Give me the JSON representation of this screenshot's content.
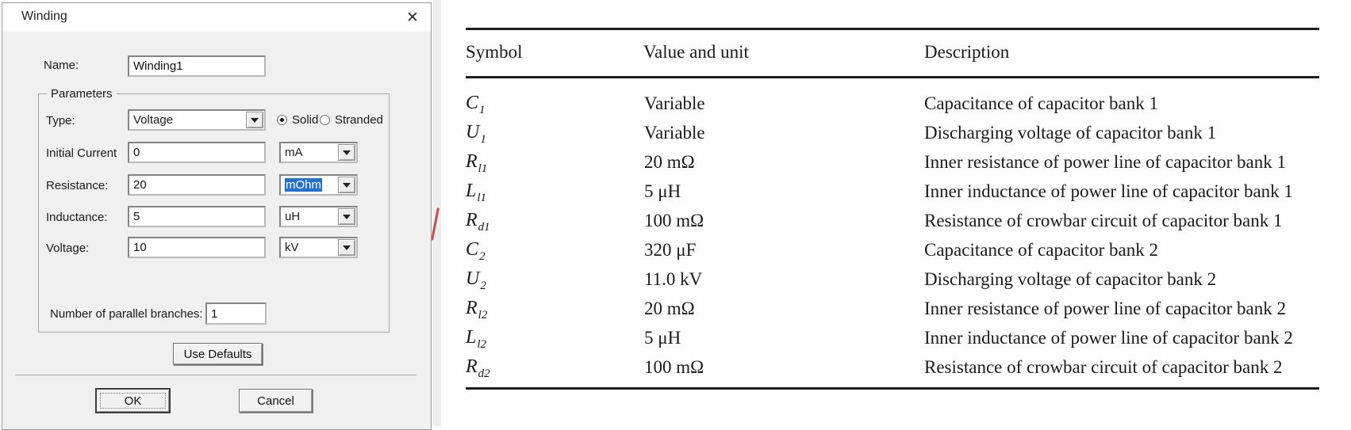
{
  "dialog": {
    "title": "Winding",
    "close_icon": "✕",
    "name": {
      "label": "Name:",
      "value": "Winding1"
    },
    "group_label": "Parameters",
    "type": {
      "label": "Type:",
      "value": "Voltage"
    },
    "conductor": {
      "solid_label": "Solid",
      "stranded_label": "Stranded",
      "selected": "Solid"
    },
    "initial_current": {
      "label": "Initial Current",
      "value": "0",
      "unit": "mA"
    },
    "resistance": {
      "label": "Resistance:",
      "value": "20",
      "unit": "mOhm",
      "unit_selected": true
    },
    "inductance": {
      "label": "Inductance:",
      "value": "5",
      "unit": "uH"
    },
    "voltage": {
      "label": "Voltage:",
      "value": "10",
      "unit": "kV"
    },
    "branches": {
      "label": "Number of parallel branches:",
      "value": "1"
    },
    "buttons": {
      "use_defaults": "Use Defaults",
      "ok": "OK",
      "cancel": "Cancel"
    }
  },
  "table": {
    "headers": [
      "Symbol",
      "Value and unit",
      "Description"
    ],
    "rows": [
      {
        "symbol_base": "C",
        "symbol_sub": "1",
        "value": "Variable",
        "description": "Capacitance of capacitor bank 1"
      },
      {
        "symbol_base": "U",
        "symbol_sub": "1",
        "value": "Variable",
        "description": "Discharging voltage of capacitor bank 1"
      },
      {
        "symbol_base": "R",
        "symbol_sub": "l1",
        "value": "20 mΩ",
        "description": "Inner resistance of power line of capacitor bank 1"
      },
      {
        "symbol_base": "L",
        "symbol_sub": "l1",
        "value": "5 μH",
        "description": "Inner inductance of power line of capacitor bank 1"
      },
      {
        "symbol_base": "R",
        "symbol_sub": "d1",
        "value": "100 mΩ",
        "description": "Resistance of crowbar circuit of capacitor bank 1"
      },
      {
        "symbol_base": "C",
        "symbol_sub": "2",
        "value": "320 μF",
        "description": "Capacitance of capacitor bank 2"
      },
      {
        "symbol_base": "U",
        "symbol_sub": "2",
        "value": "11.0 kV",
        "description": "Discharging voltage of capacitor bank 2"
      },
      {
        "symbol_base": "R",
        "symbol_sub": "l2",
        "value": "20 mΩ",
        "description": "Inner resistance of power line of capacitor bank 2"
      },
      {
        "symbol_base": "L",
        "symbol_sub": "l2",
        "value": "5 μH",
        "description": "Inner inductance of power line of capacitor bank 2"
      },
      {
        "symbol_base": "R",
        "symbol_sub": "d2",
        "value": "100 mΩ",
        "description": "Resistance of crowbar circuit of capacitor bank 2"
      }
    ]
  },
  "colors": {
    "selection_blue": "#2470d4",
    "rule_black": "#1d1d1d",
    "dialog_bg": "#f0f0f0"
  }
}
